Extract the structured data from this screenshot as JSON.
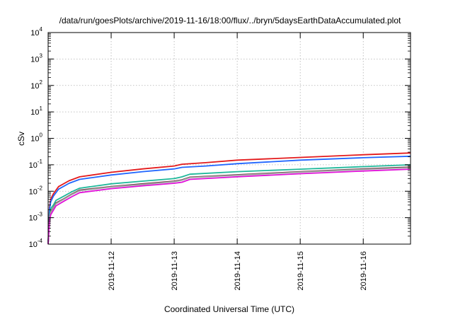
{
  "chart_data": {
    "type": "line",
    "title": "/data/run/goesPlots/archive/2019-11-16/18:00/flux/../bryn/5daysEarthDataAccumulated.plot",
    "xlabel": "Coordinated Universal Time (UTC)",
    "ylabel": "cSv",
    "yscale": "log",
    "ylim": [
      0.0001,
      10000
    ],
    "yticks": [
      {
        "base": "10",
        "exp": "-4",
        "value": 0.0001
      },
      {
        "base": "10",
        "exp": "-3",
        "value": 0.001
      },
      {
        "base": "10",
        "exp": "-2",
        "value": 0.01
      },
      {
        "base": "10",
        "exp": "-1",
        "value": 0.1
      },
      {
        "base": "10",
        "exp": "0",
        "value": 1
      },
      {
        "base": "10",
        "exp": "1",
        "value": 10
      },
      {
        "base": "10",
        "exp": "2",
        "value": 100
      },
      {
        "base": "10",
        "exp": "3",
        "value": 1000
      },
      {
        "base": "10",
        "exp": "4",
        "value": 10000
      }
    ],
    "xlim": [
      "2019-11-11T00:00",
      "2019-11-16T18:00"
    ],
    "xticks": [
      "2019-11-12",
      "2019-11-13",
      "2019-11-14",
      "2019-11-15",
      "2019-11-16"
    ],
    "grid": true,
    "legend": "none",
    "series": [
      {
        "color": "#e31a1c",
        "points": [
          [
            "2019-11-11T00:00",
            0.0001
          ],
          [
            "2019-11-11T00:30",
            0.0025
          ],
          [
            "2019-11-11T01:00",
            0.005
          ],
          [
            "2019-11-11T02:00",
            0.008
          ],
          [
            "2019-11-11T04:00",
            0.015
          ],
          [
            "2019-11-11T08:00",
            0.025
          ],
          [
            "2019-11-11T12:00",
            0.035
          ],
          [
            "2019-11-12T00:00",
            0.052
          ],
          [
            "2019-11-12T12:00",
            0.07
          ],
          [
            "2019-11-13T00:00",
            0.09
          ],
          [
            "2019-11-13T03:00",
            0.105
          ],
          [
            "2019-11-13T12:00",
            0.12
          ],
          [
            "2019-11-14T00:00",
            0.15
          ],
          [
            "2019-11-15T00:00",
            0.19
          ],
          [
            "2019-11-16T00:00",
            0.24
          ],
          [
            "2019-11-16T18:00",
            0.28
          ]
        ]
      },
      {
        "color": "#2166ff",
        "points": [
          [
            "2019-11-11T00:00",
            0.0001
          ],
          [
            "2019-11-11T00:30",
            0.002
          ],
          [
            "2019-11-11T01:00",
            0.004
          ],
          [
            "2019-11-11T02:00",
            0.0065
          ],
          [
            "2019-11-11T04:00",
            0.012
          ],
          [
            "2019-11-11T08:00",
            0.02
          ],
          [
            "2019-11-11T12:00",
            0.028
          ],
          [
            "2019-11-12T00:00",
            0.041
          ],
          [
            "2019-11-12T12:00",
            0.055
          ],
          [
            "2019-11-13T00:00",
            0.07
          ],
          [
            "2019-11-13T03:00",
            0.08
          ],
          [
            "2019-11-13T12:00",
            0.09
          ],
          [
            "2019-11-14T00:00",
            0.11
          ],
          [
            "2019-11-15T00:00",
            0.15
          ],
          [
            "2019-11-16T00:00",
            0.185
          ],
          [
            "2019-11-16T18:00",
            0.21
          ]
        ]
      },
      {
        "color": "#1fb89a",
        "points": [
          [
            "2019-11-11T00:00",
            0.0001
          ],
          [
            "2019-11-11T00:30",
            0.0012
          ],
          [
            "2019-11-11T01:00",
            0.0022
          ],
          [
            "2019-11-11T02:00",
            0.003
          ],
          [
            "2019-11-11T03:00",
            0.0045
          ],
          [
            "2019-11-11T06:00",
            0.0065
          ],
          [
            "2019-11-11T09:00",
            0.0095
          ],
          [
            "2019-11-11T12:00",
            0.013
          ],
          [
            "2019-11-12T00:00",
            0.019
          ],
          [
            "2019-11-12T12:00",
            0.024
          ],
          [
            "2019-11-13T00:00",
            0.03
          ],
          [
            "2019-11-13T03:00",
            0.035
          ],
          [
            "2019-11-13T06:00",
            0.044
          ],
          [
            "2019-11-14T00:00",
            0.055
          ],
          [
            "2019-11-15T00:00",
            0.068
          ],
          [
            "2019-11-16T00:00",
            0.085
          ],
          [
            "2019-11-16T18:00",
            0.1
          ]
        ]
      },
      {
        "color": "#6b2a3a",
        "points": [
          [
            "2019-11-11T00:00",
            0.0001
          ],
          [
            "2019-11-11T00:30",
            0.001
          ],
          [
            "2019-11-11T01:00",
            0.0017
          ],
          [
            "2019-11-11T02:00",
            0.0024
          ],
          [
            "2019-11-11T03:00",
            0.0036
          ],
          [
            "2019-11-11T06:00",
            0.0052
          ],
          [
            "2019-11-11T09:00",
            0.0078
          ],
          [
            "2019-11-11T12:00",
            0.011
          ],
          [
            "2019-11-12T00:00",
            0.015
          ],
          [
            "2019-11-12T12:00",
            0.019
          ],
          [
            "2019-11-13T00:00",
            0.024
          ],
          [
            "2019-11-13T03:00",
            0.027
          ],
          [
            "2019-11-13T06:00",
            0.034
          ],
          [
            "2019-11-14T00:00",
            0.042
          ],
          [
            "2019-11-15T00:00",
            0.055
          ],
          [
            "2019-11-16T00:00",
            0.07
          ],
          [
            "2019-11-16T18:00",
            0.082
          ]
        ]
      },
      {
        "color": "#a0a0a0",
        "points": [
          [
            "2019-11-11T00:00",
            0.0001
          ],
          [
            "2019-11-11T00:30",
            0.00095
          ],
          [
            "2019-11-11T01:00",
            0.0016
          ],
          [
            "2019-11-11T02:00",
            0.0023
          ],
          [
            "2019-11-11T03:00",
            0.0034
          ],
          [
            "2019-11-11T06:00",
            0.005
          ],
          [
            "2019-11-11T09:00",
            0.0075
          ],
          [
            "2019-11-11T12:00",
            0.0105
          ],
          [
            "2019-11-12T00:00",
            0.0145
          ],
          [
            "2019-11-12T12:00",
            0.018
          ],
          [
            "2019-11-13T00:00",
            0.023
          ],
          [
            "2019-11-13T03:00",
            0.026
          ],
          [
            "2019-11-13T06:00",
            0.033
          ],
          [
            "2019-11-14T00:00",
            0.04
          ],
          [
            "2019-11-15T00:00",
            0.053
          ],
          [
            "2019-11-16T00:00",
            0.067
          ],
          [
            "2019-11-16T18:00",
            0.078
          ]
        ]
      },
      {
        "color": "#e010d8",
        "points": [
          [
            "2019-11-11T00:00",
            0.0001
          ],
          [
            "2019-11-11T00:30",
            0.0008
          ],
          [
            "2019-11-11T01:00",
            0.0013
          ],
          [
            "2019-11-11T02:00",
            0.0019
          ],
          [
            "2019-11-11T03:00",
            0.0028
          ],
          [
            "2019-11-11T06:00",
            0.0042
          ],
          [
            "2019-11-11T09:00",
            0.0062
          ],
          [
            "2019-11-11T12:00",
            0.0088
          ],
          [
            "2019-11-12T00:00",
            0.0125
          ],
          [
            "2019-11-12T12:00",
            0.016
          ],
          [
            "2019-11-13T00:00",
            0.02
          ],
          [
            "2019-11-13T03:00",
            0.022
          ],
          [
            "2019-11-13T06:00",
            0.028
          ],
          [
            "2019-11-14T00:00",
            0.035
          ],
          [
            "2019-11-15T00:00",
            0.046
          ],
          [
            "2019-11-16T00:00",
            0.058
          ],
          [
            "2019-11-16T18:00",
            0.068
          ]
        ]
      }
    ]
  }
}
